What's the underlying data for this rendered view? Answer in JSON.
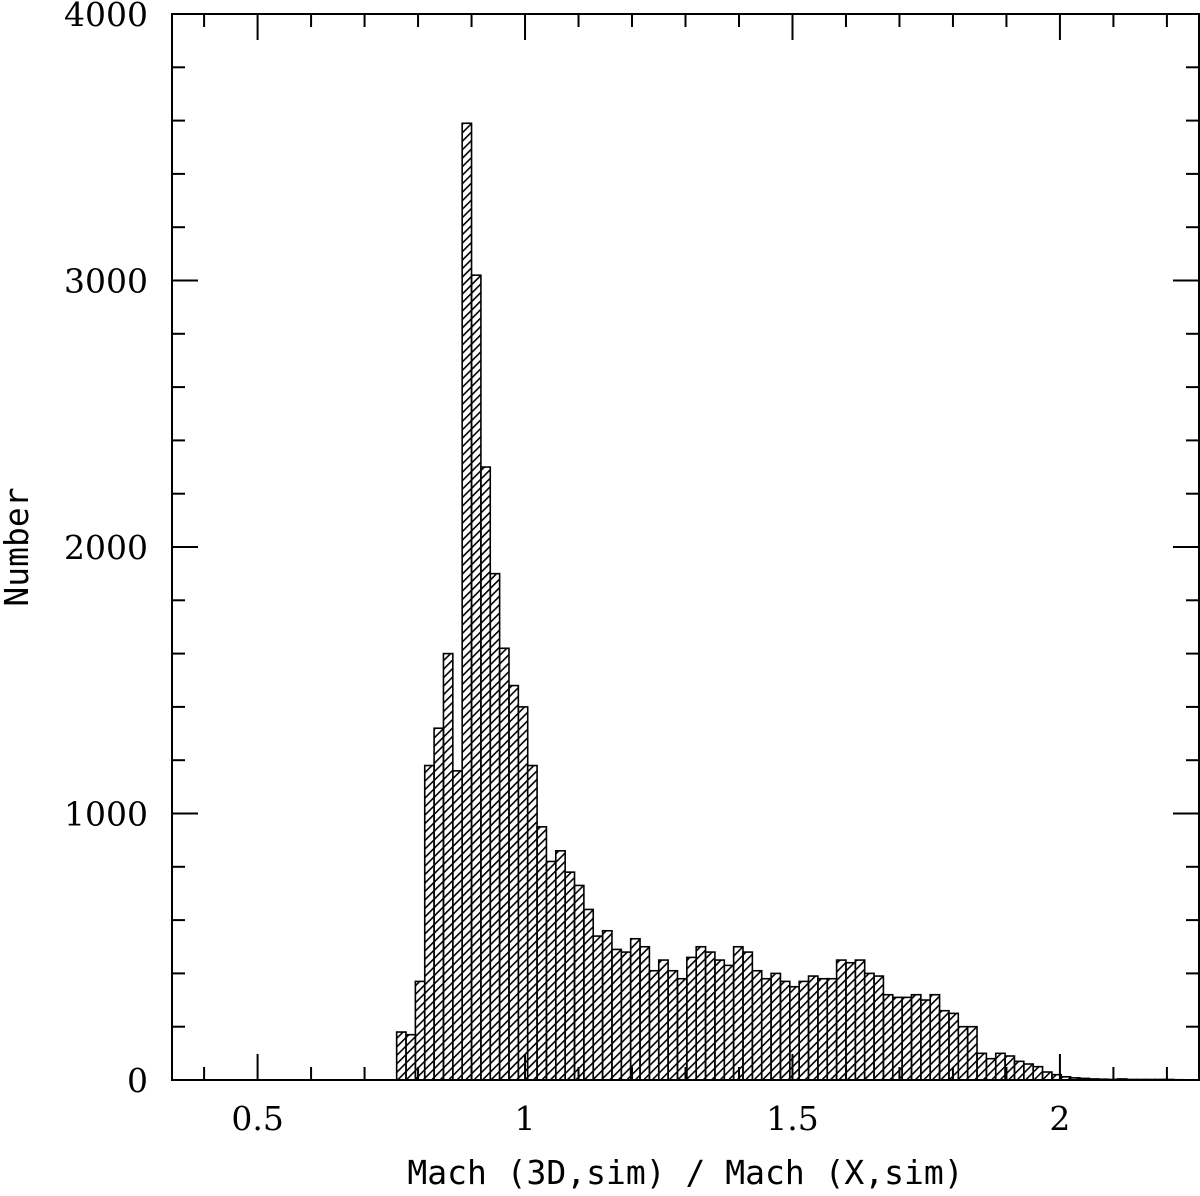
{
  "chart_data": {
    "type": "bar",
    "xlabel": "Mach (3D,sim) / Mach (X,sim)",
    "ylabel": "Number",
    "xlim": [
      0.34,
      2.26
    ],
    "ylim": [
      0,
      4000
    ],
    "x_major_ticks": [
      0.5,
      1,
      1.5,
      2
    ],
    "x_tick_labels": [
      "0.5",
      "1",
      "1.5",
      "2"
    ],
    "x_minor_step": 0.1,
    "y_major_ticks": [
      0,
      1000,
      2000,
      3000,
      4000
    ],
    "y_tick_labels": [
      "0",
      "1000",
      "2000",
      "3000",
      "4000"
    ],
    "y_minor_step": 200,
    "bin_width": 0.0175,
    "bin_start": 0.76,
    "values": [
      180,
      170,
      370,
      1180,
      1320,
      1600,
      1160,
      3590,
      3020,
      2300,
      1900,
      1620,
      1480,
      1400,
      1180,
      950,
      820,
      860,
      780,
      730,
      640,
      540,
      560,
      490,
      480,
      530,
      500,
      410,
      450,
      410,
      380,
      460,
      500,
      480,
      450,
      430,
      500,
      480,
      410,
      380,
      400,
      370,
      350,
      370,
      390,
      380,
      380,
      450,
      440,
      450,
      400,
      390,
      320,
      310,
      310,
      320,
      300,
      320,
      260,
      250,
      200,
      200,
      100,
      80,
      100,
      90,
      70,
      60,
      50,
      30,
      20,
      12,
      8,
      6,
      4,
      3,
      2,
      4,
      2,
      2,
      2,
      2,
      2,
      1
    ],
    "fill": "hatched",
    "colors": {
      "stroke": "#000000",
      "hatch": "#000000",
      "background": "#ffffff"
    },
    "grid": false,
    "legend": null
  }
}
